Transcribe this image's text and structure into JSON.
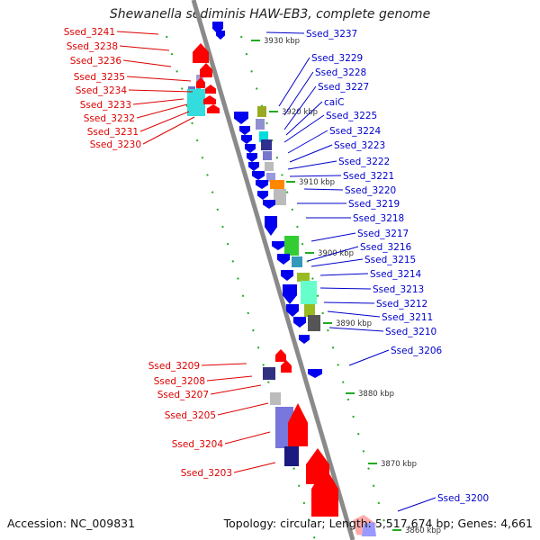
{
  "title": "Shewanella sediminis HAW-EB3, complete genome",
  "footer": {
    "accession": "Accession: NC_009831",
    "topology": "Topology: circular; Length: 5,517,674 bp; Genes: 4,661"
  },
  "colors": {
    "left_strand": "#ff0000",
    "right_strand": "#0000ee",
    "backbone": "#888888",
    "tick": "#22aa22"
  },
  "scale_labels": [
    "3930 kbp",
    "3920 kbp",
    "3910 kbp",
    "3900 kbp",
    "3890 kbp",
    "3880 kbp",
    "3870 kbp",
    "3860 kbp"
  ],
  "left_labels": [
    "Ssed_3241",
    "Ssed_3238",
    "Ssed_3236",
    "Ssed_3235",
    "Ssed_3234",
    "Ssed_3233",
    "Ssed_3232",
    "Ssed_3231",
    "Ssed_3230",
    "Ssed_3209",
    "Ssed_3208",
    "Ssed_3207",
    "Ssed_3205",
    "Ssed_3204",
    "Ssed_3203"
  ],
  "right_labels": [
    "Ssed_3237",
    "Ssed_3229",
    "Ssed_3228",
    "Ssed_3227",
    "caiC",
    "Ssed_3225",
    "Ssed_3224",
    "Ssed_3223",
    "Ssed_3222",
    "Ssed_3221",
    "Ssed_3220",
    "Ssed_3219",
    "Ssed_3218",
    "Ssed_3217",
    "Ssed_3216",
    "Ssed_3215",
    "Ssed_3214",
    "Ssed_3213",
    "Ssed_3212",
    "Ssed_3211",
    "Ssed_3210",
    "Ssed_3206",
    "Ssed_3200"
  ]
}
